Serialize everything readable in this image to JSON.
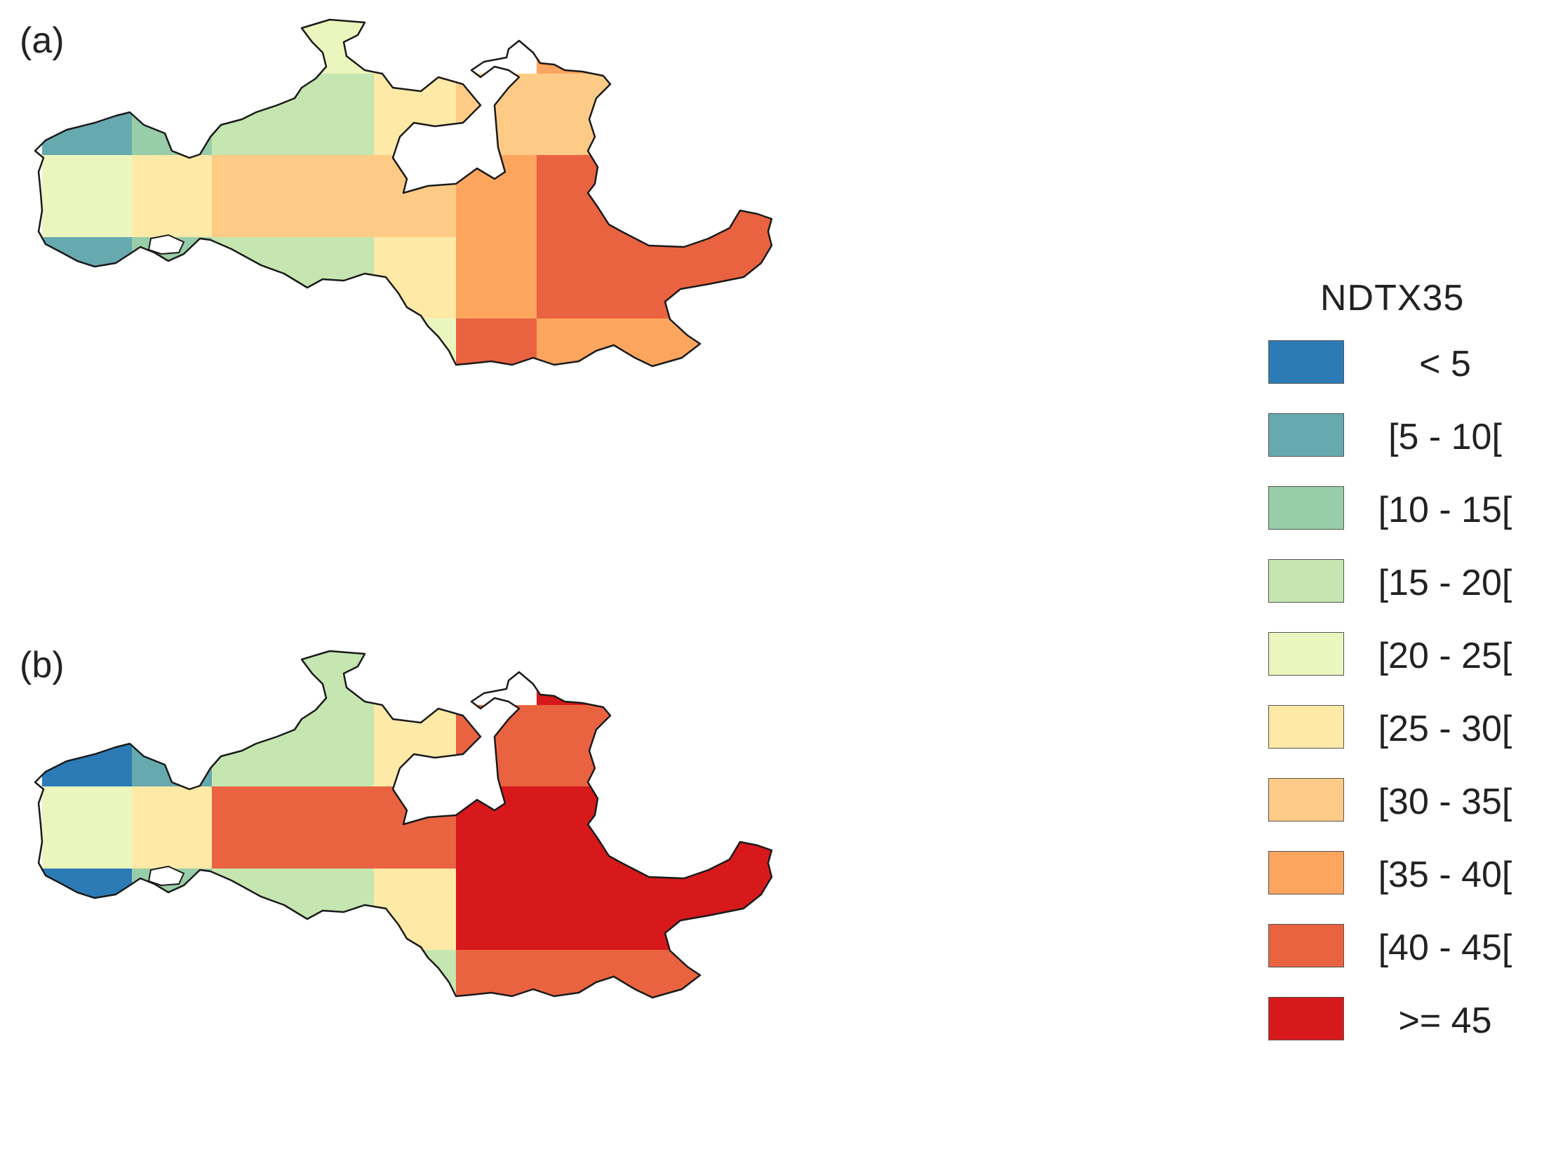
{
  "panels": [
    {
      "id": "a",
      "label": "(a)",
      "cells": [
        [
          null,
          null,
          null,
          4,
          5,
          null,
          7,
          5,
          7,
          null
        ],
        [
          1,
          2,
          3,
          3,
          5,
          6,
          6,
          7,
          8,
          null
        ],
        [
          4,
          5,
          6,
          6,
          6,
          7,
          8,
          8,
          8,
          8
        ],
        [
          1,
          2,
          3,
          3,
          5,
          7,
          8,
          8,
          8,
          7
        ],
        [
          null,
          null,
          null,
          null,
          4,
          8,
          7,
          7,
          7,
          null
        ]
      ]
    },
    {
      "id": "b",
      "label": "(b)",
      "cells": [
        [
          null,
          null,
          null,
          3,
          5,
          null,
          9,
          4,
          9,
          null
        ],
        [
          0,
          1,
          3,
          3,
          5,
          8,
          8,
          8,
          9,
          null
        ],
        [
          4,
          5,
          8,
          8,
          8,
          9,
          9,
          9,
          9,
          9
        ],
        [
          0,
          2,
          3,
          3,
          5,
          9,
          9,
          9,
          9,
          7
        ],
        [
          null,
          null,
          null,
          null,
          3,
          8,
          8,
          8,
          8,
          null
        ]
      ]
    }
  ],
  "legend": {
    "title": "NDTX35",
    "items": [
      {
        "label": "< 5",
        "color": "#2c7bb6"
      },
      {
        "label": "[5 - 10[",
        "color": "#66a9ae"
      },
      {
        "label": "[10 - 15[",
        "color": "#97cda8"
      },
      {
        "label": "[15 - 20[",
        "color": "#c5e6b0"
      },
      {
        "label": "[20 - 25[",
        "color": "#eaf6bd"
      },
      {
        "label": "[25 - 30[",
        "color": "#fee9a6"
      },
      {
        "label": "[30 - 35[",
        "color": "#fdcb85"
      },
      {
        "label": "[35 - 40[",
        "color": "#fca55e"
      },
      {
        "label": "[40 - 45[",
        "color": "#ea6340"
      },
      {
        "label": ">= 45",
        "color": "#d7191c"
      }
    ]
  }
}
